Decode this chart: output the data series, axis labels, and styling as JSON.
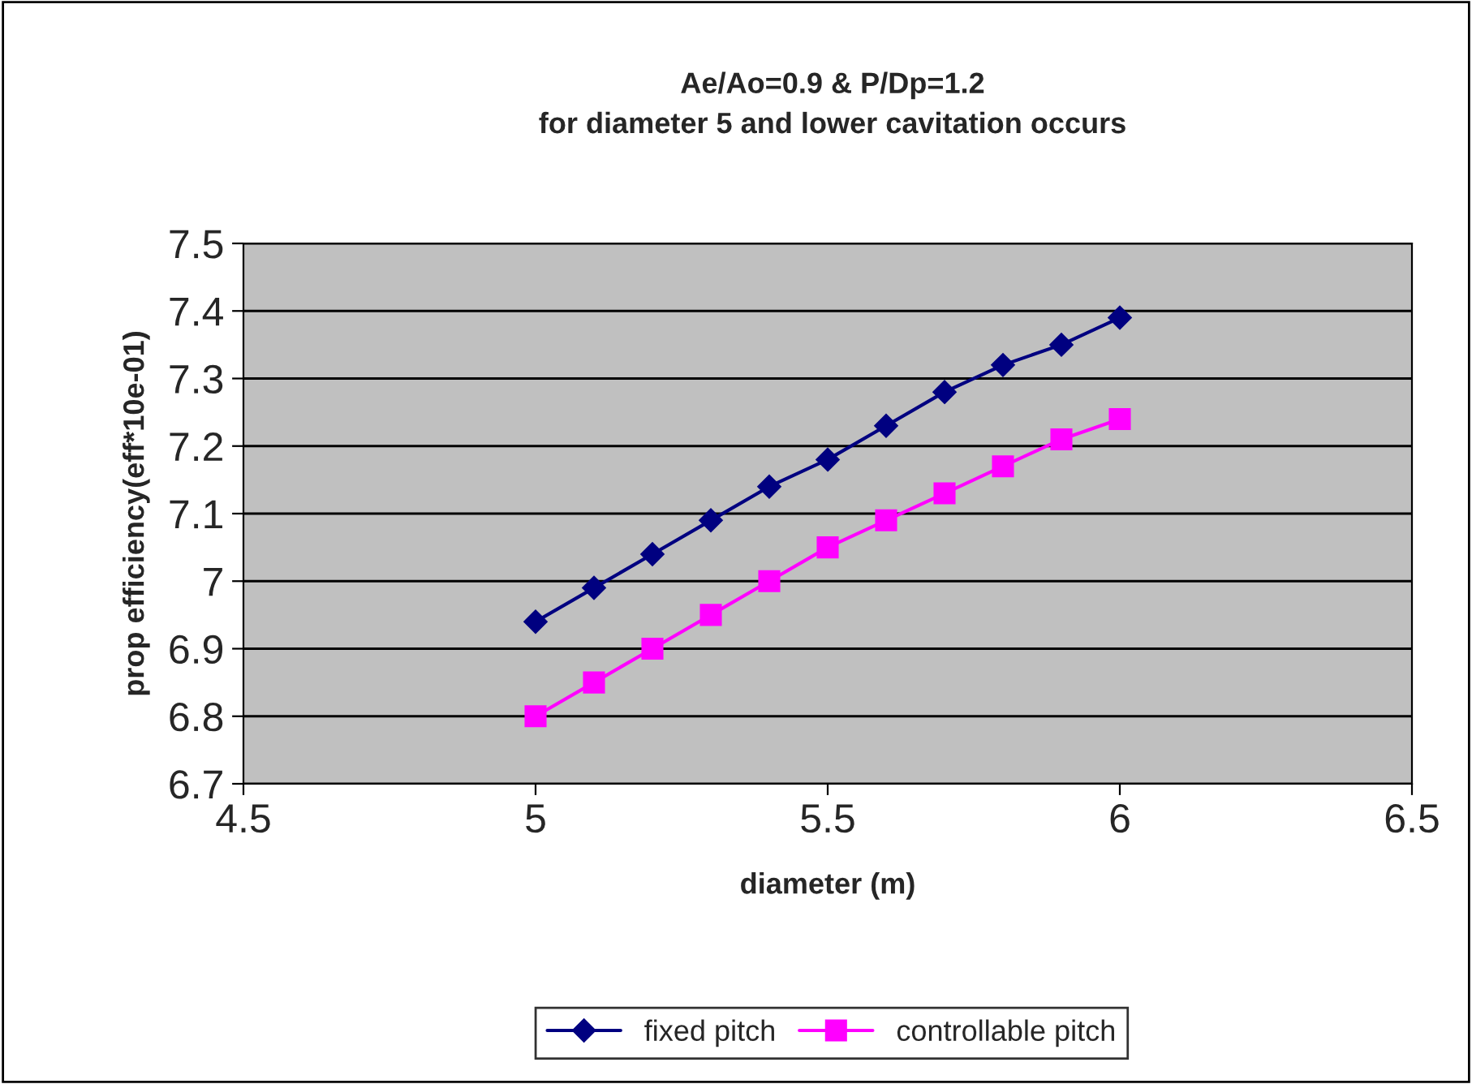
{
  "chart_data": {
    "type": "line",
    "title": "Ae/Ao=0.9 & P/Dp=1.2\nfor diameter 5 and lower cavitation occurs",
    "xlabel": "diameter (m)",
    "ylabel": "prop efficiency(eff*10e-01)",
    "x": [
      5.0,
      5.1,
      5.2,
      5.3,
      5.4,
      5.5,
      5.6,
      5.7,
      5.8,
      5.9,
      6.0
    ],
    "series": [
      {
        "name": "fixed pitch",
        "color": "#000080",
        "marker": "diamond",
        "values": [
          6.94,
          6.99,
          7.04,
          7.09,
          7.14,
          7.18,
          7.23,
          7.28,
          7.32,
          7.35,
          7.39
        ]
      },
      {
        "name": "controllable pitch",
        "color": "#ff00ff",
        "marker": "square",
        "values": [
          6.8,
          6.85,
          6.9,
          6.95,
          7.0,
          7.05,
          7.09,
          7.13,
          7.17,
          7.21,
          7.24
        ]
      }
    ],
    "xlim": [
      4.5,
      6.5
    ],
    "xticks": [
      4.5,
      5,
      5.5,
      6,
      6.5
    ],
    "ylim": [
      6.7,
      7.5
    ],
    "yticks": [
      6.7,
      6.8,
      6.9,
      7,
      7.1,
      7.2,
      7.3,
      7.4,
      7.5
    ],
    "grid": "y",
    "legend": "bottom",
    "line_style": "solid"
  }
}
